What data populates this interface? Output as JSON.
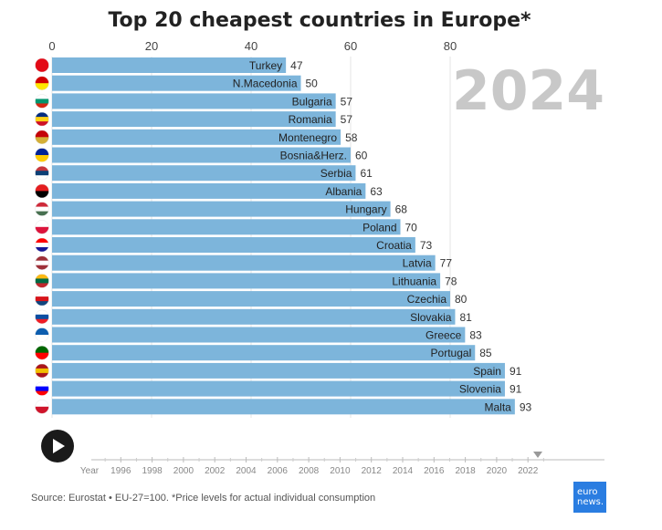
{
  "chart_data": {
    "type": "bar",
    "orientation": "horizontal",
    "title": "Top 20 cheapest countries in Europe*",
    "year": "2024",
    "xlim": [
      0,
      100
    ],
    "x_ticks": [
      "0",
      "20",
      "40",
      "60",
      "80"
    ],
    "bar_color": "#7db5db",
    "categories": [
      "Turkey",
      "N.Macedonia",
      "Bulgaria",
      "Romania",
      "Montenegro",
      "Bosnia&Herz.",
      "Serbia",
      "Albania",
      "Hungary",
      "Poland",
      "Croatia",
      "Latvia",
      "Lithuania",
      "Czechia",
      "Slovakia",
      "Greece",
      "Portugal",
      "Spain",
      "Slovenia",
      "Malta"
    ],
    "values": [
      47,
      50,
      57,
      57,
      58,
      60,
      61,
      63,
      68,
      70,
      73,
      77,
      78,
      80,
      81,
      83,
      85,
      91,
      91,
      93
    ],
    "flags": [
      {
        "icon": "turkey-flag-icon",
        "colors": [
          "#e30a17"
        ]
      },
      {
        "icon": "north-macedonia-flag-icon",
        "colors": [
          "#d20000",
          "#ffe600"
        ]
      },
      {
        "icon": "bulgaria-flag-icon",
        "colors": [
          "#ffffff",
          "#00966e",
          "#d62612"
        ]
      },
      {
        "icon": "romania-flag-icon",
        "colors": [
          "#002b7f",
          "#fcd116",
          "#ce1126"
        ]
      },
      {
        "icon": "montenegro-flag-icon",
        "colors": [
          "#c40308",
          "#d4af37"
        ]
      },
      {
        "icon": "bosnia-flag-icon",
        "colors": [
          "#002395",
          "#fecb00"
        ]
      },
      {
        "icon": "serbia-flag-icon",
        "colors": [
          "#c6363c",
          "#0c4076",
          "#ffffff"
        ]
      },
      {
        "icon": "albania-flag-icon",
        "colors": [
          "#e41e20",
          "#000000"
        ]
      },
      {
        "icon": "hungary-flag-icon",
        "colors": [
          "#ce2939",
          "#ffffff",
          "#477050"
        ]
      },
      {
        "icon": "poland-flag-icon",
        "colors": [
          "#ffffff",
          "#dc143c"
        ]
      },
      {
        "icon": "croatia-flag-icon",
        "colors": [
          "#ff0000",
          "#ffffff",
          "#171796"
        ]
      },
      {
        "icon": "latvia-flag-icon",
        "colors": [
          "#9e3039",
          "#ffffff",
          "#9e3039"
        ]
      },
      {
        "icon": "lithuania-flag-icon",
        "colors": [
          "#fdb913",
          "#006a44",
          "#c1272d"
        ]
      },
      {
        "icon": "czechia-flag-icon",
        "colors": [
          "#ffffff",
          "#d7141a",
          "#11457e"
        ]
      },
      {
        "icon": "slovakia-flag-icon",
        "colors": [
          "#ffffff",
          "#0b4ea2",
          "#ee1c25"
        ]
      },
      {
        "icon": "greece-flag-icon",
        "colors": [
          "#0d5eaf",
          "#ffffff"
        ]
      },
      {
        "icon": "portugal-flag-icon",
        "colors": [
          "#006600",
          "#ff0000"
        ]
      },
      {
        "icon": "spain-flag-icon",
        "colors": [
          "#aa151b",
          "#f1bf00",
          "#aa151b"
        ]
      },
      {
        "icon": "slovenia-flag-icon",
        "colors": [
          "#ffffff",
          "#0000ff",
          "#ff0000"
        ]
      },
      {
        "icon": "malta-flag-icon",
        "colors": [
          "#ffffff",
          "#cf142b"
        ]
      }
    ]
  },
  "timeline": {
    "labels": [
      "Year",
      "1996",
      "1998",
      "2000",
      "2002",
      "2004",
      "2006",
      "2008",
      "2010",
      "2012",
      "2014",
      "2016",
      "2018",
      "2020",
      "2022"
    ],
    "current_marker": "2024"
  },
  "play_button": {
    "icon": "play-icon"
  },
  "source": "Source: Eurostat • EU-27=100. *Price levels for actual individual consumption",
  "logo": {
    "line1": "euro",
    "line2": "news."
  }
}
